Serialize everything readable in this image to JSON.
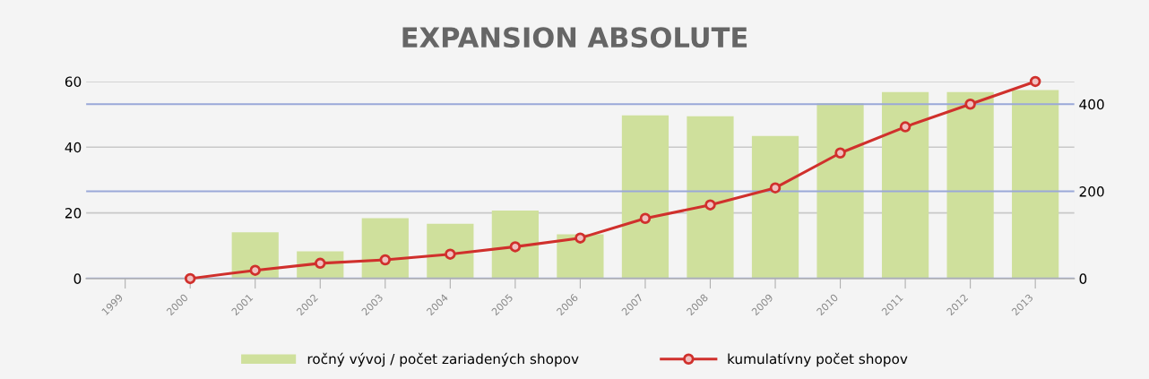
{
  "chart_data": {
    "type": "bar",
    "title": "EXPANSION ABSOLUTE",
    "categories": [
      "1999",
      "2000",
      "2001",
      "2002",
      "2003",
      "2004",
      "2005",
      "2006",
      "2007",
      "2008",
      "2009",
      "2010",
      "2011",
      "2012",
      "2013"
    ],
    "series": [
      {
        "name": "ročný vývoj / počet zariadených shopov",
        "color": "#cfe09c",
        "values": [
          null,
          null,
          14.1,
          8.3,
          18.4,
          16.7,
          20.7,
          13.5,
          49.7,
          49.4,
          43.4,
          53.4,
          56.8,
          56.8,
          57.4
        ]
      },
      {
        "name": "kumulatívny počet shopov",
        "type": "line",
        "axis": "y2",
        "color": "#d0302c",
        "marker": "circle",
        "values": [
          null,
          0,
          19,
          35,
          43,
          56,
          73,
          93,
          138,
          169,
          208,
          288,
          348,
          400,
          452
        ]
      }
    ],
    "ylim": [
      0,
      60
    ],
    "yticks": [
      0,
      20,
      40,
      60
    ],
    "y2lim": [
      0,
      452
    ],
    "y2ticks": [
      0,
      200,
      400
    ],
    "grid": "y",
    "legend": "bottom"
  }
}
